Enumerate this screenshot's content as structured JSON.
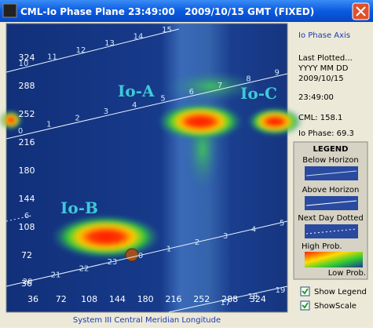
{
  "window": {
    "title": "CML-Io Phase Plane 23:49:00   2009/10/15 GMT (FIXED)"
  },
  "plot": {
    "y_labels": [
      324,
      288,
      252,
      216,
      180,
      144,
      108,
      72,
      36
    ],
    "x_labels": [
      36,
      72,
      108,
      144,
      180,
      216,
      252,
      288,
      324
    ],
    "x_axis_title": "System III Central Meridian Longitude",
    "regions": [
      "Io-A",
      "Io-B",
      "Io-C"
    ],
    "traces": [
      [
        10,
        11,
        12,
        13,
        14,
        15
      ],
      [
        0,
        1,
        2,
        3,
        4,
        5,
        6,
        7,
        8,
        9
      ],
      [
        20,
        21,
        22,
        23,
        0,
        1,
        2,
        3,
        4,
        5
      ],
      [
        17,
        18,
        19
      ],
      [
        6
      ]
    ]
  },
  "panel": {
    "io_phase_axis": "Io Phase Axis",
    "last_plotted": "Last Plotted...",
    "date_format": "YYYY MM DD",
    "date": "2009/10/15",
    "time": "23:49:00",
    "cml": "CML: 158.1",
    "io_phase": "Io Phase: 69.3"
  },
  "legend": {
    "title": "LEGEND",
    "below": "Below Horizon",
    "above": "Above Horizon",
    "next_day": "Next Day Dotted",
    "high": "High Prob.",
    "low": "Low Prob."
  },
  "options": [
    "Show Legend",
    "ShowScale"
  ]
}
